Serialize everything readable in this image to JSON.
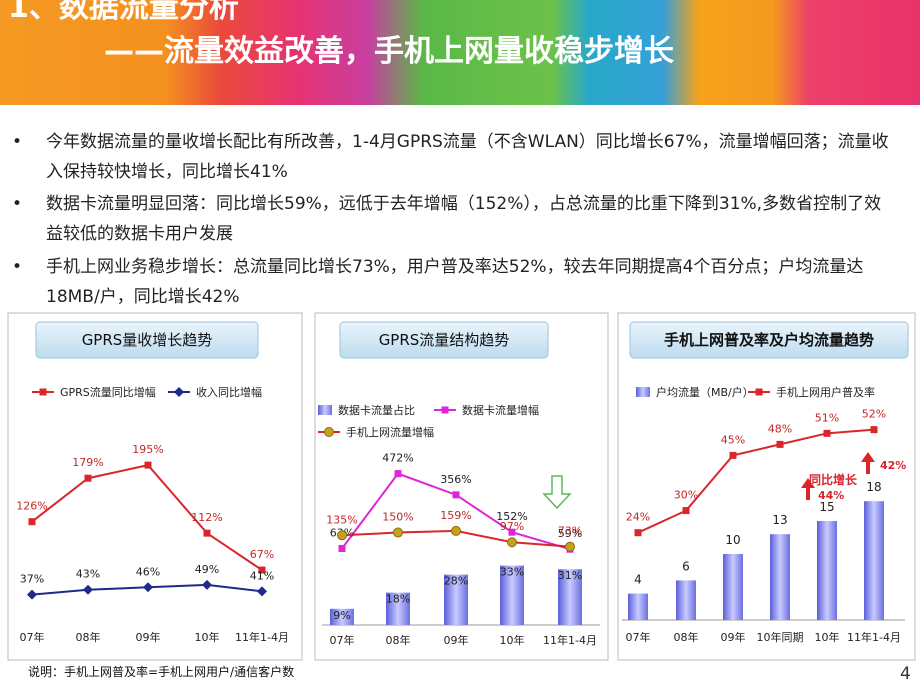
{
  "title_line1": "1、数据流量分析",
  "title_line2": "——流量效益改善，手机上网量收稳步增长",
  "bullets": [
    "今年数据流量的量收增长配比有所改善，1-4月GPRS流量（不含WLAN）同比增长67%，流量增幅回落；流量收入保持较快增长，同比增长41%",
    "数据卡流量明显回落：同比增长59%，远低于去年增幅（152%），占总流量的比重下降到31%,多数省控制了效益较低的数据卡用户发展",
    "手机上网业务稳步增长：总流量同比增长73%，用户普及率达52%，较去年同期提高4个百分点；户均流量达18MB/户，同比增长42%"
  ],
  "footnote": "说明：手机上网普及率=手机上网用户/通信客户数",
  "page_number": "4",
  "chart_data": [
    {
      "type": "line",
      "title": "GPRS量收增长趋势",
      "categories": [
        "07年",
        "08年",
        "09年",
        "10年",
        "11年1-4月"
      ],
      "series": [
        {
          "name": "GPRS流量同比增幅",
          "color": "#d9262b",
          "marker": "square",
          "values": [
            126,
            179,
            195,
            112,
            67
          ],
          "value_labels": [
            "126%",
            "179%",
            "195%",
            "112%",
            "67%"
          ]
        },
        {
          "name": "收入同比增幅",
          "color": "#1f2a8a",
          "marker": "diamond",
          "values": [
            37,
            43,
            46,
            49,
            41
          ],
          "value_labels": [
            "37%",
            "43%",
            "46%",
            "49%",
            "41%"
          ]
        }
      ]
    },
    {
      "type": "combo",
      "title": "GPRS流量结构趋势",
      "categories": [
        "07年",
        "08年",
        "09年",
        "10年",
        "11年1-4月"
      ],
      "series": [
        {
          "name": "数据卡流量占比",
          "type": "bar",
          "color": "#7b80e6",
          "values": [
            9,
            18,
            28,
            33,
            31
          ],
          "value_labels": [
            "9%",
            "18%",
            "28%",
            "33%",
            "31%"
          ]
        },
        {
          "name": "数据卡流量增幅",
          "type": "line",
          "color": "#e024d8",
          "marker": "square",
          "values": [
            63,
            472,
            356,
            152,
            59
          ],
          "value_labels": [
            "63%",
            "472%",
            "356%",
            "152%",
            "59%"
          ]
        },
        {
          "name": "手机上网流量增幅",
          "type": "line",
          "color": "#d9262b",
          "marker": "circle",
          "marker_color": "#c8a020",
          "values": [
            135,
            150,
            159,
            97,
            73
          ],
          "value_labels": [
            "135%",
            "150%",
            "159%",
            "97%",
            "73%"
          ]
        }
      ]
    },
    {
      "type": "combo",
      "title": "手机上网普及率及户均流量趋势",
      "categories": [
        "07年",
        "08年",
        "09年",
        "10年同期",
        "10年",
        "11年1-4月"
      ],
      "series": [
        {
          "name": "户均流量（MB/户）",
          "type": "bar",
          "color": "#7b80e6",
          "values": [
            4,
            6,
            10,
            13,
            15,
            18
          ]
        },
        {
          "name": "手机上网用户普及率",
          "type": "line",
          "color": "#d9262b",
          "marker": "square",
          "values": [
            24,
            30,
            45,
            48,
            51,
            52
          ],
          "value_labels": [
            "24%",
            "30%",
            "45%",
            "48%",
            "51%",
            "52%"
          ]
        }
      ],
      "annotations": [
        "同比增长",
        "44%",
        "42%"
      ]
    }
  ]
}
